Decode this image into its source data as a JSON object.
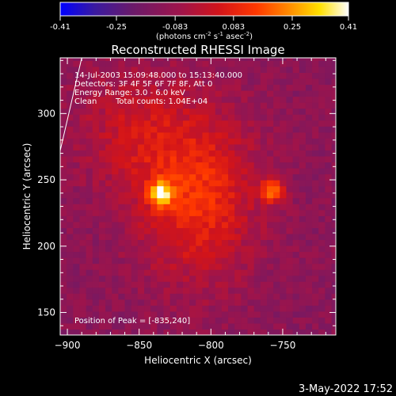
{
  "colorbar": {
    "ticks": [
      "-0.41",
      "-0.25",
      "-0.083",
      "0.083",
      "0.25",
      "0.41"
    ],
    "tick_values": [
      -0.41,
      -0.25,
      -0.083,
      0.083,
      0.25,
      0.41
    ],
    "range": [
      -0.41,
      0.41
    ],
    "units_main": "(photons cm",
    "units_sup1": "-2",
    "units_mid": " s",
    "units_sup2": "-1",
    "units_end": " asec",
    "units_sup3": "-2",
    "units_close": ")"
  },
  "chart_data": {
    "type": "heatmap",
    "title": "Reconstructed RHESSI Image",
    "xlabel": "Heliocentric X (arcsec)",
    "ylabel": "Heliocentric Y (arcsec)",
    "xlim": [
      -905,
      -713
    ],
    "ylim": [
      133,
      342
    ],
    "x_ticks": [
      -900,
      -850,
      -800,
      -750
    ],
    "x_tick_labels": [
      "−900",
      "−850",
      "−800",
      "−750"
    ],
    "y_ticks": [
      150,
      200,
      250,
      300
    ],
    "y_tick_labels": [
      "150",
      "200",
      "250",
      "300"
    ],
    "sources": [
      {
        "x": -835,
        "y": 240,
        "peak": 0.41
      },
      {
        "x": -757,
        "y": 242,
        "peak": 0.34
      }
    ],
    "limb_line": {
      "x": [
        -905,
        -890
      ],
      "y": [
        272,
        342
      ]
    },
    "annotations": [
      "14-Jul-2003 15:09:48.000 to 15:13:40.000",
      "Detectors: 3F 4F 5F 6F 7F 8F, Att 0",
      "Energy Range: 3.0 - 6.0 keV",
      "Clean",
      "Total counts: 1.04E+04"
    ],
    "peak_label": "Position of Peak = [-835,240]"
  },
  "footer": {
    "date": "3-May-2022 17:52"
  }
}
